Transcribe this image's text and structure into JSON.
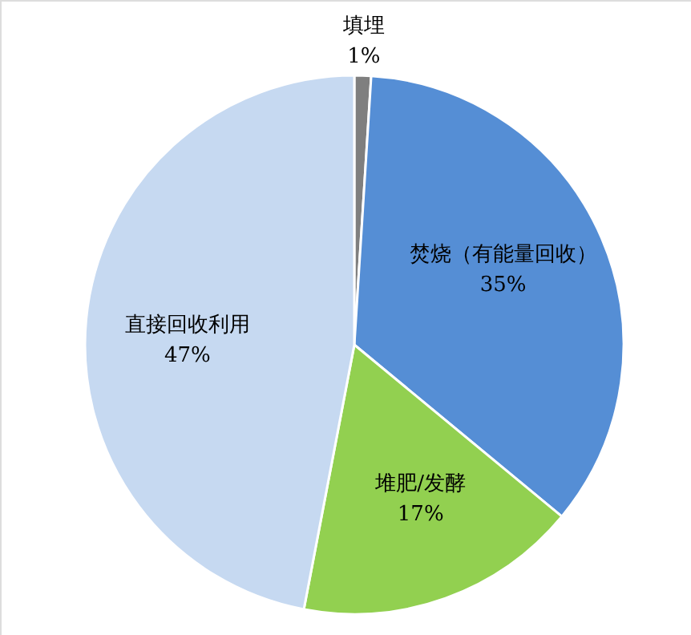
{
  "chart_data": {
    "type": "pie",
    "categories": [
      "填埋",
      "焚烧（有能量回收）",
      "堆肥/发酵",
      "直接回收利用"
    ],
    "values": [
      1,
      35,
      17,
      47
    ],
    "value_labels": [
      "1%",
      "35%",
      "17%",
      "47%"
    ],
    "colors": [
      "#7f7f7f",
      "#558ed5",
      "#92d050",
      "#c6d9f1"
    ]
  }
}
